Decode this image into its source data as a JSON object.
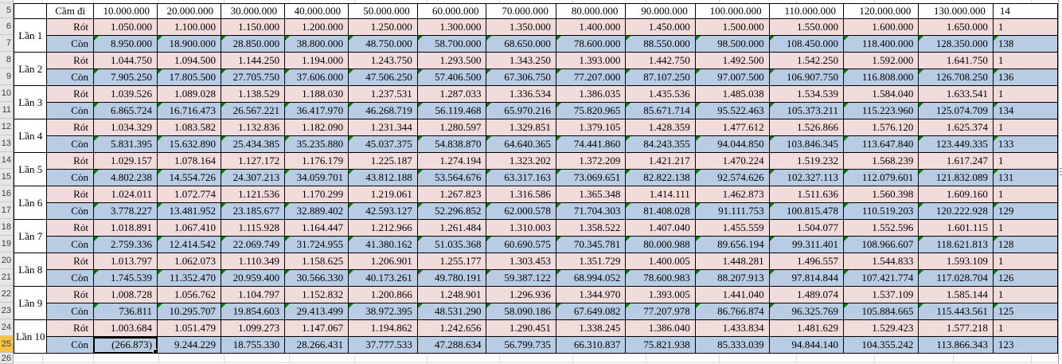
{
  "table": {
    "corner_header": "Cầm đi",
    "column_headers": [
      "10.000.000",
      "20.000.000",
      "30.000.000",
      "40.000.000",
      "50.000.000",
      "60.000.000",
      "70.000.000",
      "80.000.000",
      "90.000.000",
      "100.000.000",
      "110.000.000",
      "120.000.000",
      "130.000.000"
    ],
    "column_header_partial": "14",
    "row_types": [
      "Rót",
      "Còn"
    ],
    "groups": [
      {
        "label": "Lần 1",
        "rot": [
          "1.050.000",
          "1.100.000",
          "1.150.000",
          "1.200.000",
          "1.250.000",
          "1.300.000",
          "1.350.000",
          "1.400.000",
          "1.450.000",
          "1.500.000",
          "1.550.000",
          "1.600.000",
          "1.650.000"
        ],
        "rot_partial": "1",
        "con": [
          "8.950.000",
          "18.900.000",
          "28.850.000",
          "38.800.000",
          "48.750.000",
          "58.700.000",
          "68.650.000",
          "78.600.000",
          "88.550.000",
          "98.500.000",
          "108.450.000",
          "118.400.000",
          "128.350.000"
        ],
        "con_partial": "138"
      },
      {
        "label": "Lần 2",
        "rot": [
          "1.044.750",
          "1.094.500",
          "1.144.250",
          "1.194.000",
          "1.243.750",
          "1.293.500",
          "1.343.250",
          "1.393.000",
          "1.442.750",
          "1.492.500",
          "1.542.250",
          "1.592.000",
          "1.641.750"
        ],
        "rot_partial": "1",
        "con": [
          "7.905.250",
          "17.805.500",
          "27.705.750",
          "37.606.000",
          "47.506.250",
          "57.406.500",
          "67.306.750",
          "77.207.000",
          "87.107.250",
          "97.007.500",
          "106.907.750",
          "116.808.000",
          "126.708.250"
        ],
        "con_partial": "136"
      },
      {
        "label": "Lần 3",
        "rot": [
          "1.039.526",
          "1.089.028",
          "1.138.529",
          "1.188.030",
          "1.237.531",
          "1.287.033",
          "1.336.534",
          "1.386.035",
          "1.435.536",
          "1.485.038",
          "1.534.539",
          "1.584.040",
          "1.633.541"
        ],
        "rot_partial": "1",
        "con": [
          "6.865.724",
          "16.716.473",
          "26.567.221",
          "36.417.970",
          "46.268.719",
          "56.119.468",
          "65.970.216",
          "75.820.965",
          "85.671.714",
          "95.522.463",
          "105.373.211",
          "115.223.960",
          "125.074.709"
        ],
        "con_partial": "134"
      },
      {
        "label": "Lần 4",
        "rot": [
          "1.034.329",
          "1.083.582",
          "1.132.836",
          "1.182.090",
          "1.231.344",
          "1.280.597",
          "1.329.851",
          "1.379.105",
          "1.428.359",
          "1.477.612",
          "1.526.866",
          "1.576.120",
          "1.625.374"
        ],
        "rot_partial": "1",
        "con": [
          "5.831.395",
          "15.632.890",
          "25.434.385",
          "35.235.880",
          "45.037.375",
          "54.838.870",
          "64.640.365",
          "74.441.860",
          "84.243.355",
          "94.044.850",
          "103.846.345",
          "113.647.840",
          "123.449.335"
        ],
        "con_partial": "133"
      },
      {
        "label": "Lần 5",
        "rot": [
          "1.029.157",
          "1.078.164",
          "1.127.172",
          "1.176.179",
          "1.225.187",
          "1.274.194",
          "1.323.202",
          "1.372.209",
          "1.421.217",
          "1.470.224",
          "1.519.232",
          "1.568.239",
          "1.617.247"
        ],
        "rot_partial": "1",
        "con": [
          "4.802.238",
          "14.554.726",
          "24.307.213",
          "34.059.701",
          "43.812.188",
          "53.564.676",
          "63.317.163",
          "73.069.651",
          "82.822.138",
          "92.574.626",
          "102.327.113",
          "112.079.601",
          "121.832.089"
        ],
        "con_partial": "131"
      },
      {
        "label": "Lần 6",
        "rot": [
          "1.024.011",
          "1.072.774",
          "1.121.536",
          "1.170.299",
          "1.219.061",
          "1.267.823",
          "1.316.586",
          "1.365.348",
          "1.414.111",
          "1.462.873",
          "1.511.636",
          "1.560.398",
          "1.609.160"
        ],
        "rot_partial": "1",
        "con": [
          "3.778.227",
          "13.481.952",
          "23.185.677",
          "32.889.402",
          "42.593.127",
          "52.296.852",
          "62.000.578",
          "71.704.303",
          "81.408.028",
          "91.111.753",
          "100.815.478",
          "110.519.203",
          "120.222.928"
        ],
        "con_partial": "129"
      },
      {
        "label": "Lần 7",
        "rot": [
          "1.018.891",
          "1.067.410",
          "1.115.928",
          "1.164.447",
          "1.212.966",
          "1.261.484",
          "1.310.003",
          "1.358.522",
          "1.407.040",
          "1.455.559",
          "1.504.077",
          "1.552.596",
          "1.601.115"
        ],
        "rot_partial": "1",
        "con": [
          "2.759.336",
          "12.414.542",
          "22.069.749",
          "31.724.955",
          "41.380.162",
          "51.035.368",
          "60.690.575",
          "70.345.781",
          "80.000.988",
          "89.656.194",
          "99.311.401",
          "108.966.607",
          "118.621.813"
        ],
        "con_partial": "128"
      },
      {
        "label": "Lần 8",
        "rot": [
          "1.013.797",
          "1.062.073",
          "1.110.349",
          "1.158.625",
          "1.206.901",
          "1.255.177",
          "1.303.453",
          "1.351.729",
          "1.400.005",
          "1.448.281",
          "1.496.557",
          "1.544.833",
          "1.593.109"
        ],
        "rot_partial": "1",
        "con": [
          "1.745.539",
          "11.352.470",
          "20.959.400",
          "30.566.330",
          "40.173.261",
          "49.780.191",
          "59.387.122",
          "68.994.052",
          "78.600.983",
          "88.207.913",
          "97.814.844",
          "107.421.774",
          "117.028.704"
        ],
        "con_partial": "126"
      },
      {
        "label": "Lần 9",
        "rot": [
          "1.008.728",
          "1.056.762",
          "1.104.797",
          "1.152.832",
          "1.200.866",
          "1.248.901",
          "1.296.936",
          "1.344.970",
          "1.393.005",
          "1.441.040",
          "1.489.074",
          "1.537.109",
          "1.585.144"
        ],
        "rot_partial": "1",
        "con": [
          "736.811",
          "10.295.707",
          "19.854.603",
          "29.413.499",
          "38.972.395",
          "48.531.290",
          "58.090.186",
          "67.649.082",
          "77.207.978",
          "86.766.874",
          "96.325.769",
          "105.884.665",
          "115.443.561"
        ],
        "con_partial": "125"
      },
      {
        "label": "Lần 10",
        "rot": [
          "1.003.684",
          "1.051.479",
          "1.099.273",
          "1.147.067",
          "1.194.862",
          "1.242.656",
          "1.290.451",
          "1.338.245",
          "1.386.040",
          "1.433.834",
          "1.481.629",
          "1.529.423",
          "1.577.218"
        ],
        "rot_partial": "1",
        "con": [
          "(266.873)",
          "9.244.229",
          "18.755.330",
          "28.266.431",
          "37.777.533",
          "47.288.634",
          "56.799.735",
          "66.310.837",
          "75.821.938",
          "85.333.039",
          "94.844.140",
          "104.355.242",
          "113.866.343"
        ],
        "con_partial": "123"
      }
    ]
  },
  "selection": {
    "group_index": 9,
    "row_type": "con",
    "col_index": 0,
    "selected_row_number": "25"
  },
  "row_numbers": [
    "5",
    "6",
    "7",
    "8",
    "9",
    "10",
    "11",
    "12",
    "13",
    "14",
    "15",
    "16",
    "17",
    "18",
    "19",
    "20",
    "21",
    "22",
    "23",
    "24",
    "25",
    "26"
  ],
  "colors": {
    "rot_row_bg": "#F2DCDB",
    "con_row_bg": "#B8CCE4",
    "error_indicator_green": "#007A00",
    "row_header_bg": "#E6E6E6",
    "selected_row_header_bg": "#F5C243"
  }
}
